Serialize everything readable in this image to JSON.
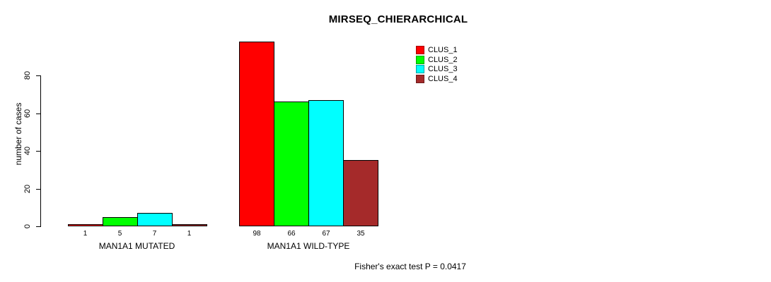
{
  "chart_data": {
    "type": "bar",
    "title": "MIRSEQ_CHIERARCHICAL",
    "ylabel": "number of cases",
    "xlabel": "",
    "ylim": [
      0,
      80
    ],
    "yticks": [
      "0",
      "20",
      "40",
      "60",
      "80"
    ],
    "grid": false,
    "legend_position": "upper-right",
    "categories": [
      "MAN1A1 MUTATED",
      "MAN1A1 WILD-TYPE"
    ],
    "series": [
      {
        "name": "CLUS_1",
        "color": "#ff0000",
        "values": [
          1,
          98
        ]
      },
      {
        "name": "CLUS_2",
        "color": "#00ff00",
        "values": [
          5,
          66
        ]
      },
      {
        "name": "CLUS_3",
        "color": "#00ffff",
        "values": [
          7,
          67
        ]
      },
      {
        "name": "CLUS_4",
        "color": "#a52a2a",
        "values": [
          1,
          35
        ]
      }
    ],
    "annotation": "Fisher's exact test P = 0.0417"
  },
  "colors": {
    "background": "#ffffff",
    "axis": "#000000",
    "text": "#000000"
  }
}
